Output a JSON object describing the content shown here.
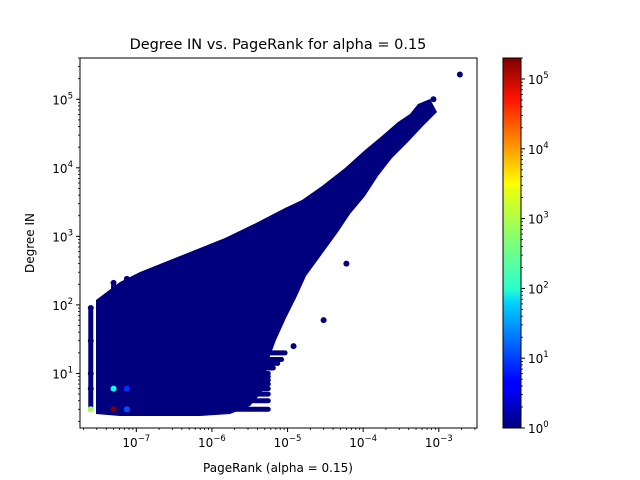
{
  "chart_data": {
    "type": "scatter",
    "title": "Degree IN vs. PageRank for alpha = 0.15",
    "xlabel": "PageRank (alpha = 0.15)",
    "ylabel": "Degree IN",
    "xscale": "log",
    "yscale": "log",
    "xlim": [
      1.8e-08,
      0.0032
    ],
    "ylim": [
      1.6,
      400000
    ],
    "x_ticks": [
      {
        "value": 1e-07,
        "base": "10",
        "exp": "−7"
      },
      {
        "value": 1e-06,
        "base": "10",
        "exp": "−6"
      },
      {
        "value": 1e-05,
        "base": "10",
        "exp": "−5"
      },
      {
        "value": 0.0001,
        "base": "10",
        "exp": "−4"
      },
      {
        "value": 0.001,
        "base": "10",
        "exp": "−3"
      }
    ],
    "y_ticks": [
      {
        "value": 10,
        "base": "10",
        "exp": "1"
      },
      {
        "value": 100,
        "base": "10",
        "exp": "2"
      },
      {
        "value": 1000,
        "base": "10",
        "exp": "3"
      },
      {
        "value": 10000,
        "base": "10",
        "exp": "4"
      },
      {
        "value": 100000,
        "base": "10",
        "exp": "5"
      }
    ],
    "colorbar": {
      "scale": "log",
      "colormap": "jet",
      "range": [
        1,
        200000
      ],
      "ticks": [
        {
          "value": 1,
          "base": "10",
          "exp": "0"
        },
        {
          "value": 10,
          "base": "10",
          "exp": "1"
        },
        {
          "value": 100,
          "base": "10",
          "exp": "2"
        },
        {
          "value": 1000,
          "base": "10",
          "exp": "3"
        },
        {
          "value": 10000,
          "base": "10",
          "exp": "4"
        },
        {
          "value": 100000,
          "base": "10",
          "exp": "5"
        }
      ]
    },
    "points": [
      {
        "x": 2.5e-08,
        "y": 3,
        "c": 700
      },
      {
        "x": 5e-08,
        "y": 3,
        "c": 200000
      },
      {
        "x": 5e-08,
        "y": 6,
        "c": 100
      },
      {
        "x": 7.5e-08,
        "y": 6,
        "c": 8
      },
      {
        "x": 7.5e-08,
        "y": 3,
        "c": 12
      },
      {
        "x": 2.5e-08,
        "y": 6,
        "c": 1
      },
      {
        "x": 2.5e-08,
        "y": 10,
        "c": 1
      },
      {
        "x": 2.5e-08,
        "y": 30,
        "c": 1
      },
      {
        "x": 2.5e-08,
        "y": 90,
        "c": 1
      },
      {
        "x": 5e-08,
        "y": 10,
        "c": 1
      },
      {
        "x": 5e-08,
        "y": 50,
        "c": 1
      },
      {
        "x": 5e-08,
        "y": 210,
        "c": 1
      },
      {
        "x": 7.5e-08,
        "y": 10,
        "c": 1
      },
      {
        "x": 7.5e-08,
        "y": 240,
        "c": 1
      },
      {
        "x": 1e-06,
        "y": 10,
        "c": 1
      },
      {
        "x": 1e-05,
        "y": 1000,
        "c": 1
      },
      {
        "x": 0.0001,
        "y": 10000,
        "c": 1
      },
      {
        "x": 0.0019,
        "y": 230000,
        "c": 1
      },
      {
        "x": 0.00085,
        "y": 100000,
        "c": 1
      },
      {
        "x": 1.2e-05,
        "y": 25,
        "c": 1
      },
      {
        "x": 3e-05,
        "y": 60,
        "c": 1
      },
      {
        "x": 6e-05,
        "y": 400,
        "c": 1
      }
    ]
  }
}
